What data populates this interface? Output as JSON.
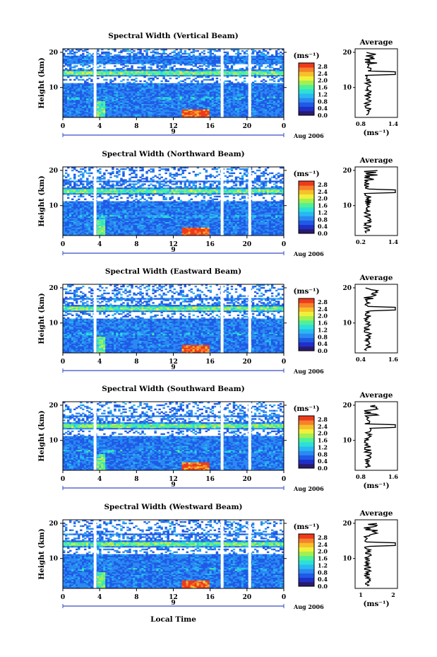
{
  "chart_data": [
    {
      "type": "heatmap",
      "title": "Spectral Width (Vertical Beam)",
      "ylabel": "Height (km)",
      "xticks": [
        "0",
        "4",
        "8",
        "12",
        "16",
        "20",
        "0"
      ],
      "yticks": [
        "20",
        "10"
      ],
      "date_label": "9",
      "month_label": "Aug 2006",
      "colorbar": {
        "unit": "(ms⁻¹)",
        "ticks": [
          "2.8",
          "2.4",
          "2.0",
          "1.6",
          "1.2",
          "0.8",
          "0.4",
          "0.0"
        ],
        "range": [
          0,
          3.0
        ]
      },
      "profile": {
        "title": "Average",
        "xticks": [
          "0.8",
          "1.4"
        ],
        "xrange": [
          0.5,
          1.6
        ],
        "xlabel": "(ms⁻¹)",
        "yticks": [
          "20",
          "10"
        ],
        "yrange": [
          1.5,
          21
        ]
      },
      "seed": 11
    },
    {
      "type": "heatmap",
      "title": "Spectral Width (Northward Beam)",
      "ylabel": "Height (km)",
      "xticks": [
        "0",
        "4",
        "8",
        "12",
        "16",
        "20",
        "0"
      ],
      "yticks": [
        "20",
        "10"
      ],
      "date_label": "9",
      "month_label": "Aug 2006",
      "colorbar": {
        "unit": "(ms⁻¹)",
        "ticks": [
          "2.8",
          "2.4",
          "2.0",
          "1.6",
          "1.2",
          "0.8",
          "0.4",
          "0.0"
        ],
        "range": [
          0,
          3.0
        ]
      },
      "profile": {
        "title": "Average",
        "xticks": [
          "0.2",
          "1.4"
        ],
        "xrange": [
          0.0,
          1.6
        ],
        "xlabel": "",
        "yticks": [
          "20",
          "10"
        ],
        "yrange": [
          1.5,
          21
        ]
      },
      "seed": 23
    },
    {
      "type": "heatmap",
      "title": "Spectral Width (Eastward Beam)",
      "ylabel": "Height (km)",
      "xticks": [
        "0",
        "4",
        "8",
        "12",
        "16",
        "20",
        "0"
      ],
      "yticks": [
        "20",
        "10"
      ],
      "date_label": "9",
      "month_label": "Aug 2006",
      "colorbar": {
        "unit": "(ms⁻¹)",
        "ticks": [
          "2.8",
          "2.4",
          "2.0",
          "1.6",
          "1.2",
          "0.8",
          "0.4",
          "0.0"
        ],
        "range": [
          0,
          3.0
        ]
      },
      "profile": {
        "title": "Average",
        "xticks": [
          "0.4",
          "1.6"
        ],
        "xrange": [
          0.1,
          2.0
        ],
        "xlabel": "",
        "yticks": [
          "20",
          "10"
        ],
        "yrange": [
          1.5,
          21
        ]
      },
      "seed": 37
    },
    {
      "type": "heatmap",
      "title": "Spectral Width (Southward Beam)",
      "ylabel": "Height (km)",
      "xticks": [
        "0",
        "4",
        "8",
        "12",
        "16",
        "20",
        "0"
      ],
      "yticks": [
        "20",
        "10"
      ],
      "date_label": "9",
      "month_label": "Aug 2006",
      "colorbar": {
        "unit": "(ms⁻¹)",
        "ticks": [
          "2.8",
          "2.4",
          "2.0",
          "1.6",
          "1.2",
          "0.8",
          "0.4",
          "0.0"
        ],
        "range": [
          0,
          3.0
        ]
      },
      "profile": {
        "title": "Average",
        "xticks": [
          "0.8",
          "1.6"
        ],
        "xrange": [
          0.5,
          2.0
        ],
        "xlabel": "(ms⁻¹)",
        "yticks": [
          "20",
          "10"
        ],
        "yrange": [
          1.5,
          21
        ]
      },
      "seed": 53
    },
    {
      "type": "heatmap",
      "title": "Spectral Width (Westward Beam)",
      "ylabel": "Height (km)",
      "xticks": [
        "0",
        "4",
        "8",
        "12",
        "16",
        "20",
        "0"
      ],
      "yticks": [
        "20",
        "10"
      ],
      "date_label": "9",
      "month_label": "Aug 2006",
      "colorbar": {
        "unit": "(ms⁻¹)",
        "ticks": [
          "2.8",
          "2.4",
          "2.0",
          "1.6",
          "1.2",
          "0.8",
          "0.4",
          "0.0"
        ],
        "range": [
          0,
          3.0
        ]
      },
      "profile": {
        "title": "Average",
        "xticks": [
          "1",
          "2"
        ],
        "xrange": [
          0.4,
          2.3
        ],
        "xlabel": "(ms⁻¹)",
        "yticks": [
          "20",
          "10"
        ],
        "yrange": [
          1.5,
          21
        ]
      },
      "seed": 71
    }
  ],
  "x_axis_label": "Local Time",
  "x_range_hours": [
    0,
    24
  ],
  "y_range_km": [
    1.5,
    21
  ],
  "data_gaps_hours": [
    3.5,
    17.3,
    20.3
  ],
  "colormap": [
    "#2a1a6e",
    "#1f2fc8",
    "#1f5ae6",
    "#2a8af2",
    "#28b8f2",
    "#2be0d8",
    "#4ff09a",
    "#a2f052",
    "#f0f03a",
    "#f7c02a",
    "#f5822a",
    "#ee3a1c"
  ]
}
